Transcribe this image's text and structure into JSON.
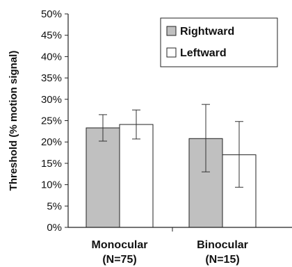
{
  "chart_data": {
    "type": "bar",
    "title": "",
    "xlabel": "",
    "ylabel": "Threshold (% motion signal)",
    "ylim": [
      0,
      50
    ],
    "yticks": [
      "0%",
      "5%",
      "10%",
      "15%",
      "20%",
      "25%",
      "30%",
      "35%",
      "40%",
      "45%",
      "50%"
    ],
    "categories": [
      {
        "line1": "Monocular",
        "line2": "(N=75)"
      },
      {
        "line1": "Binocular",
        "line2": "(N=15)"
      }
    ],
    "series": [
      {
        "name": "Rightward",
        "color": "#c0c0c0",
        "values": [
          23.3,
          20.8
        ],
        "err_low": [
          20.2,
          13.0
        ],
        "err_high": [
          26.4,
          28.8
        ]
      },
      {
        "name": "Leftward",
        "color": "#ffffff",
        "values": [
          24.1,
          17.0
        ],
        "err_low": [
          20.7,
          9.4
        ],
        "err_high": [
          27.5,
          24.8
        ]
      }
    ],
    "grid": false,
    "legend_position": "top-right"
  }
}
